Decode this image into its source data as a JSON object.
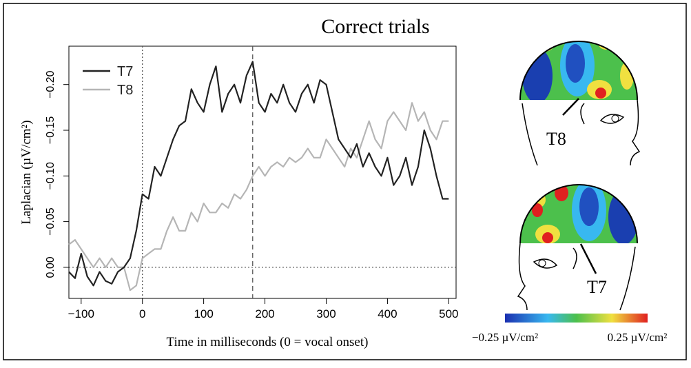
{
  "chart_data": {
    "type": "line",
    "title": "Correct trials",
    "x_label": "Time in milliseconds (0 = vocal onset)",
    "y_label": "Laplacian (µV/cm²)",
    "x": [
      -120,
      -110,
      -100,
      -90,
      -80,
      -70,
      -60,
      -50,
      -40,
      -30,
      -20,
      -10,
      0,
      10,
      20,
      30,
      40,
      50,
      60,
      70,
      80,
      90,
      100,
      110,
      120,
      130,
      140,
      150,
      160,
      170,
      180,
      190,
      200,
      210,
      220,
      230,
      240,
      250,
      260,
      270,
      280,
      290,
      300,
      310,
      320,
      330,
      340,
      350,
      360,
      370,
      380,
      390,
      400,
      410,
      420,
      430,
      440,
      450,
      460,
      470,
      480,
      490,
      500
    ],
    "series": [
      {
        "name": "T7",
        "color": "#222222",
        "values": [
          0.005,
          0.012,
          -0.015,
          0.01,
          0.02,
          0.005,
          0.015,
          0.018,
          0.005,
          0.0,
          -0.01,
          -0.04,
          -0.08,
          -0.075,
          -0.11,
          -0.1,
          -0.12,
          -0.14,
          -0.155,
          -0.16,
          -0.195,
          -0.18,
          -0.17,
          -0.2,
          -0.22,
          -0.17,
          -0.19,
          -0.2,
          -0.18,
          -0.21,
          -0.225,
          -0.18,
          -0.17,
          -0.19,
          -0.18,
          -0.2,
          -0.18,
          -0.17,
          -0.19,
          -0.2,
          -0.18,
          -0.205,
          -0.2,
          -0.17,
          -0.14,
          -0.13,
          -0.12,
          -0.135,
          -0.11,
          -0.125,
          -0.11,
          -0.1,
          -0.12,
          -0.09,
          -0.1,
          -0.12,
          -0.09,
          -0.11,
          -0.15,
          -0.13,
          -0.1,
          -0.075,
          -0.075
        ]
      },
      {
        "name": "T8",
        "color": "#b5b5b5",
        "values": [
          -0.025,
          -0.03,
          -0.02,
          -0.01,
          0.0,
          -0.01,
          0.0,
          -0.01,
          0.0,
          0.0,
          0.025,
          0.02,
          -0.01,
          -0.015,
          -0.02,
          -0.02,
          -0.04,
          -0.055,
          -0.04,
          -0.04,
          -0.06,
          -0.05,
          -0.07,
          -0.06,
          -0.06,
          -0.07,
          -0.065,
          -0.08,
          -0.075,
          -0.085,
          -0.1,
          -0.11,
          -0.1,
          -0.11,
          -0.115,
          -0.11,
          -0.12,
          -0.115,
          -0.12,
          -0.13,
          -0.12,
          -0.12,
          -0.14,
          -0.13,
          -0.12,
          -0.11,
          -0.13,
          -0.12,
          -0.14,
          -0.16,
          -0.14,
          -0.13,
          -0.16,
          -0.17,
          -0.16,
          -0.15,
          -0.18,
          -0.16,
          -0.17,
          -0.15,
          -0.14,
          -0.16,
          -0.16
        ]
      }
    ],
    "xlim": [
      -120,
      512
    ],
    "xticks": [
      {
        "value": -100,
        "label": "−100"
      },
      0,
      100,
      200,
      300,
      400,
      500
    ],
    "ylim": [
      0.034,
      -0.242
    ],
    "yticks": [
      {
        "value": 0,
        "label": "0.00"
      },
      {
        "value": -0.05,
        "label": "−0.05"
      },
      {
        "value": -0.1,
        "label": "−0.10"
      },
      {
        "value": -0.15,
        "label": "−0.15"
      },
      {
        "value": -0.2,
        "label": "−0.20"
      }
    ],
    "vlines": [
      0,
      180
    ],
    "hlines": [
      0
    ],
    "scalp_maps": [
      {
        "label": "T8"
      },
      {
        "label": "T7"
      }
    ],
    "colorbar": {
      "min_label": "−0.25 µV/cm²",
      "max_label": "0.25 µV/cm²"
    }
  }
}
